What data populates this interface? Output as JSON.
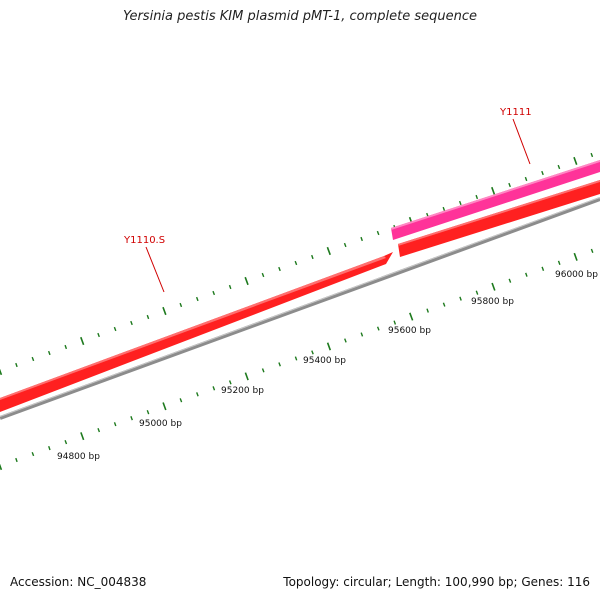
{
  "title": "Yersinia pestis KIM plasmid pMT-1, complete sequence",
  "footer": {
    "accession": "Accession: NC_004838",
    "stats": "Topology: circular; Length: 100,990 bp; Genes: 116"
  },
  "colors": {
    "backbone": "#8c8c8c",
    "forward_gene": "#ff2020",
    "reverse_gene": "#ff3399",
    "tick": "#1e7a1e",
    "gene_label": "#d00000"
  },
  "ruler": {
    "labels": [
      "94800 bp",
      "95000 bp",
      "95200 bp",
      "95400 bp",
      "95600 bp",
      "95800 bp",
      "96000 bp"
    ]
  },
  "genes": [
    {
      "name": "Y1110.S",
      "strand": "forward"
    },
    {
      "name": "Y1111",
      "strand": "reverse"
    }
  ]
}
